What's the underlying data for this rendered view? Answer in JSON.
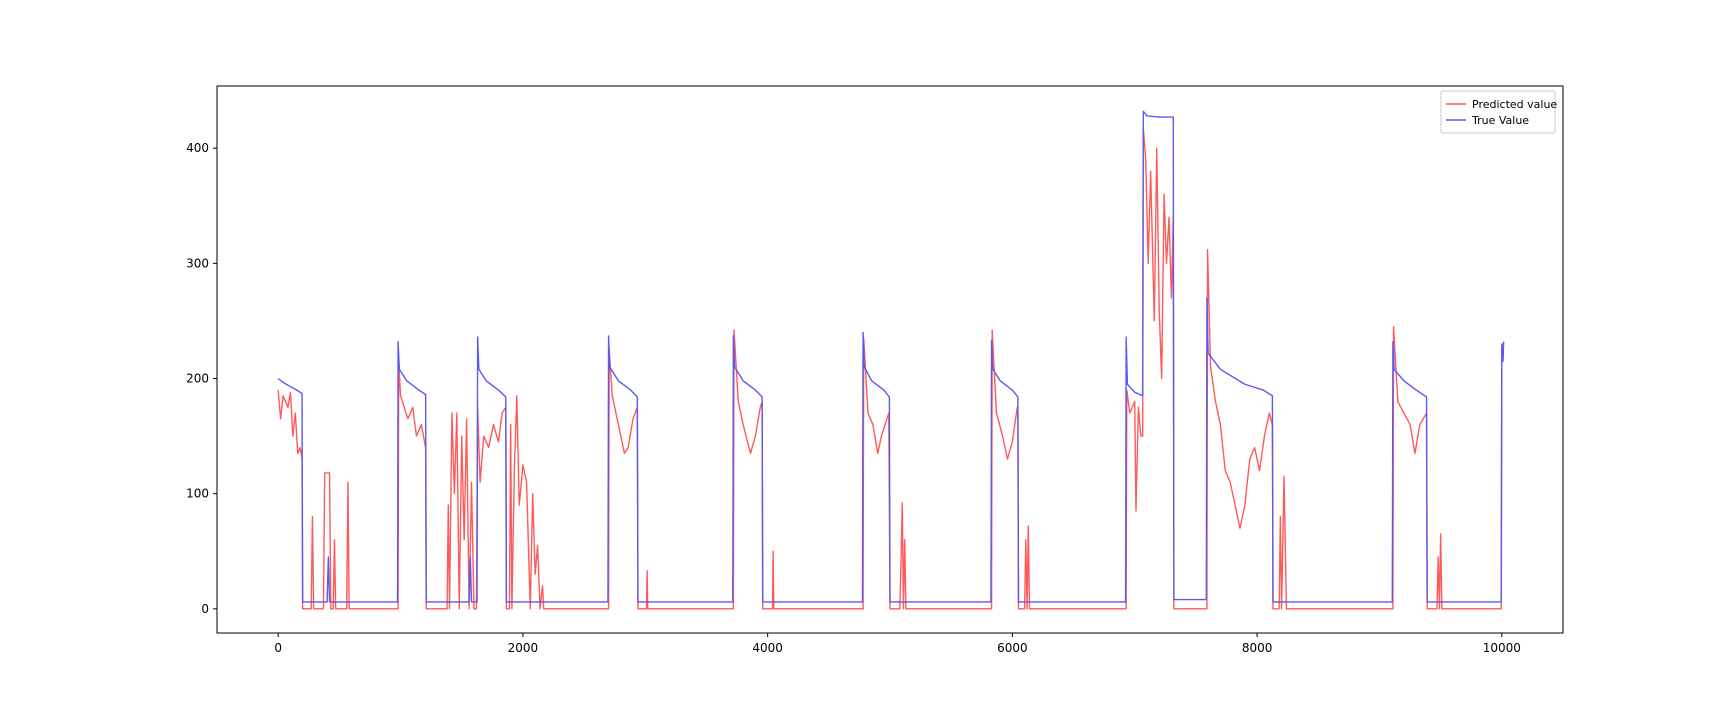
{
  "chart_data": {
    "type": "line",
    "xlim": [
      -500,
      10500
    ],
    "ylim": [
      -21,
      454
    ],
    "xticks": [
      0,
      2000,
      4000,
      6000,
      8000,
      10000
    ],
    "yticks": [
      0,
      100,
      200,
      300,
      400
    ],
    "legend": "upper right",
    "grid": false,
    "series": [
      {
        "name": "Predicted value",
        "color": "#ff5a5a",
        "x": [
          0,
          20,
          40,
          80,
          100,
          120,
          140,
          160,
          180,
          195,
          200,
          270,
          280,
          290,
          370,
          380,
          400,
          420,
          430,
          450,
          460,
          470,
          560,
          570,
          580,
          980,
          985,
          1000,
          1030,
          1060,
          1100,
          1130,
          1170,
          1205,
          1210,
          1380,
          1390,
          1400,
          1420,
          1440,
          1460,
          1480,
          1500,
          1520,
          1540,
          1560,
          1580,
          1600,
          1620,
          1630,
          1650,
          1680,
          1720,
          1760,
          1800,
          1830,
          1860,
          1865,
          1890,
          1900,
          1910,
          1930,
          1950,
          1970,
          2000,
          2030,
          2060,
          2080,
          2100,
          2120,
          2140,
          2160,
          2170,
          2700,
          2705,
          2730,
          2780,
          2830,
          2860,
          2900,
          2935,
          2940,
          3010,
          3015,
          3020,
          3720,
          3725,
          3760,
          3800,
          3860,
          3900,
          3940,
          3955,
          3960,
          4040,
          4045,
          4050,
          4780,
          4785,
          4820,
          4860,
          4900,
          4930,
          4990,
          5000,
          5080,
          5090,
          5100,
          5110,
          5120,
          5130,
          5830,
          5835,
          5870,
          5920,
          5960,
          6000,
          6040,
          6045,
          6050,
          6100,
          6110,
          6120,
          6130,
          6140,
          6930,
          6935,
          6960,
          7000,
          7010,
          7030,
          7050,
          7065,
          7070,
          7090,
          7110,
          7130,
          7160,
          7180,
          7200,
          7220,
          7240,
          7260,
          7280,
          7300,
          7315,
          7320,
          7590,
          7595,
          7620,
          7660,
          7700,
          7740,
          7780,
          7820,
          7860,
          7900,
          7940,
          7980,
          8020,
          8060,
          8100,
          8125,
          8130,
          8180,
          8190,
          8200,
          8220,
          8240,
          9110,
          9115,
          9150,
          9200,
          9250,
          9290,
          9330,
          9385,
          9390,
          9470,
          9480,
          9490,
          9500,
          9510,
          9995,
          10000,
          10010
        ],
        "values": [
          190,
          165,
          185,
          175,
          188,
          150,
          170,
          135,
          140,
          130,
          0,
          0,
          80,
          0,
          0,
          118,
          118,
          118,
          0,
          0,
          60,
          0,
          0,
          110,
          0,
          0,
          215,
          185,
          175,
          165,
          175,
          150,
          160,
          140,
          0,
          0,
          90,
          0,
          170,
          100,
          170,
          0,
          150,
          60,
          165,
          0,
          110,
          0,
          0,
          175,
          110,
          150,
          140,
          160,
          145,
          170,
          175,
          0,
          0,
          160,
          0,
          120,
          185,
          90,
          125,
          110,
          0,
          100,
          30,
          55,
          0,
          20,
          0,
          0,
          225,
          185,
          160,
          135,
          140,
          165,
          175,
          0,
          0,
          33,
          0,
          0,
          242,
          180,
          160,
          135,
          150,
          175,
          180,
          0,
          0,
          50,
          0,
          0,
          235,
          170,
          160,
          135,
          150,
          170,
          0,
          0,
          40,
          92,
          0,
          60,
          0,
          0,
          242,
          170,
          150,
          130,
          145,
          175,
          170,
          0,
          0,
          60,
          0,
          72,
          0,
          0,
          190,
          170,
          180,
          85,
          175,
          150,
          150,
          418,
          390,
          300,
          380,
          250,
          400,
          260,
          200,
          360,
          300,
          340,
          270,
          340,
          0,
          0,
          312,
          210,
          180,
          160,
          120,
          110,
          90,
          70,
          90,
          130,
          140,
          120,
          150,
          170,
          160,
          0,
          0,
          80,
          0,
          115,
          0,
          0,
          245,
          180,
          170,
          160,
          135,
          160,
          170,
          0,
          0,
          45,
          0,
          65,
          0,
          0,
          230,
          225
        ]
      },
      {
        "name": "True Value",
        "color": "#5a5aee",
        "x": [
          0,
          50,
          100,
          150,
          195,
          200,
          400,
          410,
          420,
          975,
          980,
          990,
          1050,
          1150,
          1205,
          1210,
          1560,
          1570,
          1580,
          1625,
          1630,
          1640,
          1700,
          1800,
          1860,
          1865,
          2695,
          2700,
          2710,
          2780,
          2880,
          2935,
          2940,
          3715,
          3720,
          3730,
          3800,
          3900,
          3955,
          3960,
          4775,
          4780,
          4790,
          4850,
          4950,
          4995,
          5000,
          5825,
          5830,
          5840,
          5900,
          6000,
          6045,
          6050,
          6925,
          6930,
          6940,
          7000,
          7065,
          7070,
          7100,
          7200,
          7315,
          7320,
          7585,
          7590,
          7600,
          7700,
          7900,
          8050,
          8125,
          8130,
          9105,
          9110,
          9120,
          9200,
          9300,
          9385,
          9390,
          9995,
          10000,
          10010,
          10015
        ],
        "values": [
          200,
          196,
          193,
          190,
          187,
          6,
          6,
          45,
          6,
          6,
          232,
          208,
          198,
          190,
          186,
          6,
          6,
          45,
          6,
          6,
          236,
          208,
          198,
          190,
          184,
          6,
          6,
          237,
          210,
          198,
          190,
          184,
          6,
          6,
          237,
          210,
          198,
          190,
          184,
          6,
          6,
          240,
          210,
          198,
          190,
          184,
          6,
          6,
          233,
          208,
          198,
          190,
          184,
          6,
          6,
          236,
          195,
          188,
          185,
          432,
          428,
          427,
          427,
          8,
          8,
          270,
          222,
          208,
          195,
          190,
          185,
          6,
          6,
          232,
          208,
          198,
          190,
          184,
          6,
          6,
          230,
          215,
          232
        ]
      }
    ]
  }
}
